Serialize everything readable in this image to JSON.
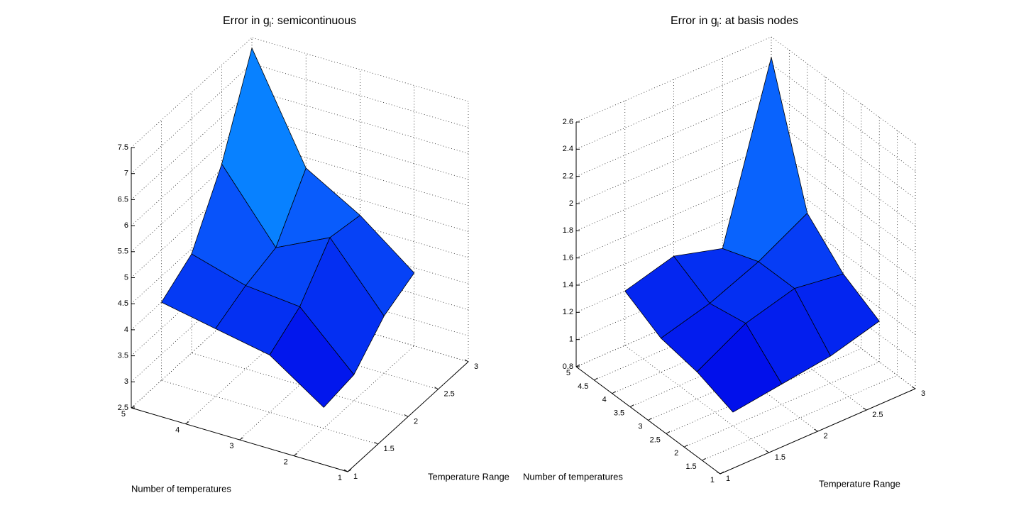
{
  "chart_data": [
    {
      "type": "surface",
      "title_parts": [
        "Error in g",
        "l",
        ": semicontinuous"
      ],
      "x_label": "Temperature Range",
      "y_label": "Number of temperatures",
      "x": [
        1.5,
        2,
        2.5,
        3
      ],
      "y": [
        2,
        3,
        4,
        5
      ],
      "z": [
        [
          2.9,
          3.0,
          3.6,
          3.9
        ],
        [
          3.6,
          4.0,
          4.8,
          4.7
        ],
        [
          3.8,
          4.1,
          4.3,
          5.3
        ],
        [
          4.0,
          4.4,
          5.6,
          7.3
        ]
      ],
      "xlim": [
        1,
        3
      ],
      "ylim": [
        1,
        5
      ],
      "zlim": [
        2.5,
        7.5
      ],
      "xticks": [
        1,
        1.5,
        2,
        2.5,
        3
      ],
      "yticks": [
        1,
        2,
        3,
        4,
        5
      ],
      "zticks": [
        2.5,
        3,
        3.5,
        4,
        4.5,
        5,
        5.5,
        6,
        6.5,
        7,
        7.5
      ],
      "grid": true,
      "colormap": [
        "#0000e8",
        "#0a6cff",
        "#00c4ff"
      ]
    },
    {
      "type": "surface",
      "title_parts": [
        "Error in g",
        "l",
        ": at basis nodes"
      ],
      "x_label": "Temperature Range",
      "y_label": "Number of temperatures",
      "x": [
        1.5,
        2,
        2.5,
        3
      ],
      "y": [
        2,
        3,
        4,
        5
      ],
      "z": [
        [
          0.9,
          0.95,
          1.0,
          1.1
        ],
        [
          1.0,
          1.2,
          1.3,
          1.25
        ],
        [
          1.05,
          1.15,
          1.3,
          1.5
        ],
        [
          1.2,
          1.3,
          1.2,
          2.45
        ]
      ],
      "xlim": [
        1,
        3
      ],
      "ylim": [
        1,
        5
      ],
      "zlim": [
        0.8,
        2.6
      ],
      "xticks": [
        1,
        1.5,
        2,
        2.5,
        3
      ],
      "yticks": [
        1,
        1.5,
        2,
        2.5,
        3,
        3.5,
        4,
        4.5,
        5
      ],
      "zticks": [
        0.8,
        1,
        1.2,
        1.4,
        1.6,
        1.8,
        2,
        2.2,
        2.4,
        2.6
      ],
      "grid": true,
      "colormap": [
        "#0000e8",
        "#0a6cff",
        "#00c4ff"
      ]
    }
  ]
}
